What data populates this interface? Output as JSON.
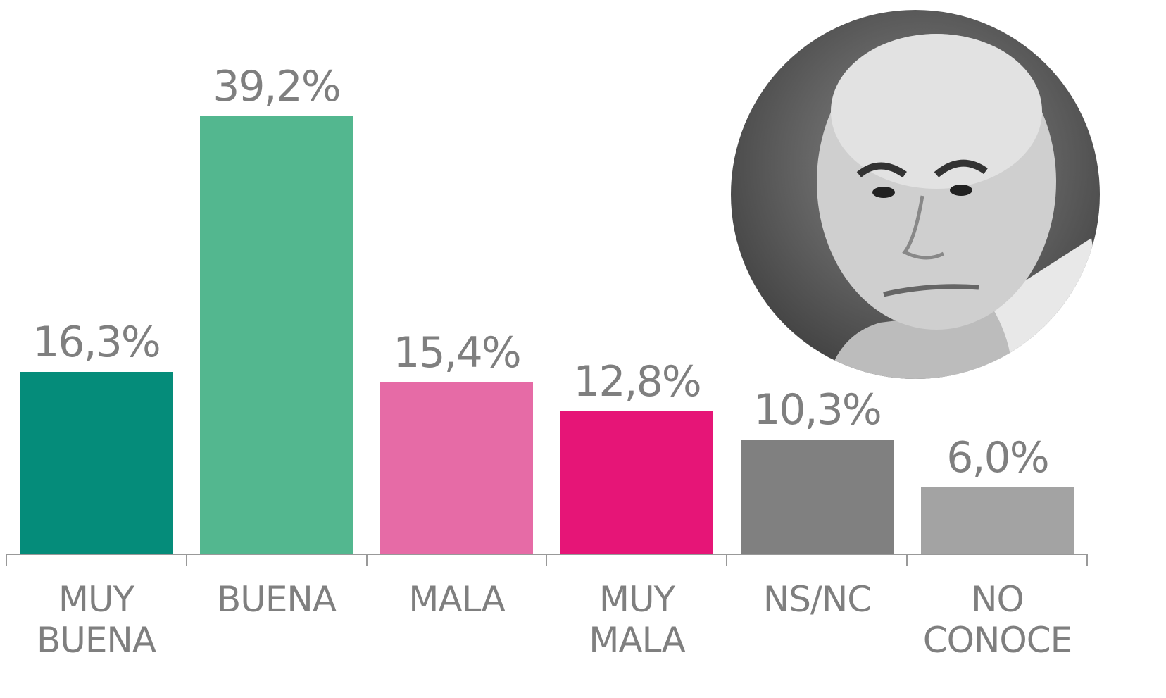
{
  "chart_data": {
    "type": "bar",
    "categories": [
      "MUY BUENA",
      "BUENA",
      "MALA",
      "MUY MALA",
      "NS/NC",
      "NO CONOCE"
    ],
    "values": [
      16.3,
      39.2,
      15.4,
      12.8,
      10.3,
      6.0
    ],
    "value_labels": [
      "16,3%",
      "39,2%",
      "15,4%",
      "12,8%",
      "10,3%",
      "6,0%"
    ],
    "colors": [
      "#058c7a",
      "#53b78f",
      "#e66ba6",
      "#e61577",
      "#808080",
      "#a3a3a3"
    ]
  }
}
